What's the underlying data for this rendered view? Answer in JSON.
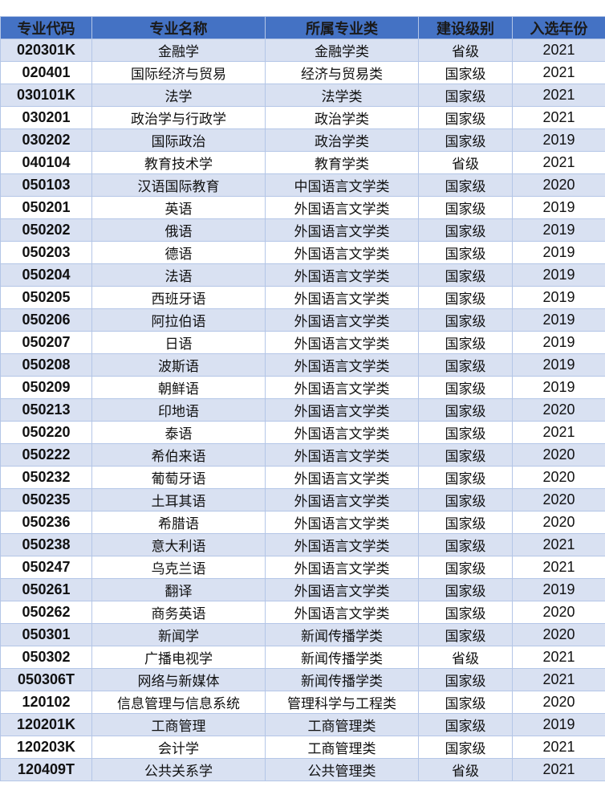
{
  "table": {
    "headers": [
      "专业代码",
      "专业名称",
      "所属专业类",
      "建设级别",
      "入选年份"
    ],
    "rows": [
      [
        "020301K",
        "金融学",
        "金融学类",
        "省级",
        "2021"
      ],
      [
        "020401",
        "国际经济与贸易",
        "经济与贸易类",
        "国家级",
        "2021"
      ],
      [
        "030101K",
        "法学",
        "法学类",
        "国家级",
        "2021"
      ],
      [
        "030201",
        "政治学与行政学",
        "政治学类",
        "国家级",
        "2021"
      ],
      [
        "030202",
        "国际政治",
        "政治学类",
        "国家级",
        "2019"
      ],
      [
        "040104",
        "教育技术学",
        "教育学类",
        "省级",
        "2021"
      ],
      [
        "050103",
        "汉语国际教育",
        "中国语言文学类",
        "国家级",
        "2020"
      ],
      [
        "050201",
        "英语",
        "外国语言文学类",
        "国家级",
        "2019"
      ],
      [
        "050202",
        "俄语",
        "外国语言文学类",
        "国家级",
        "2019"
      ],
      [
        "050203",
        "德语",
        "外国语言文学类",
        "国家级",
        "2019"
      ],
      [
        "050204",
        "法语",
        "外国语言文学类",
        "国家级",
        "2019"
      ],
      [
        "050205",
        "西班牙语",
        "外国语言文学类",
        "国家级",
        "2019"
      ],
      [
        "050206",
        "阿拉伯语",
        "外国语言文学类",
        "国家级",
        "2019"
      ],
      [
        "050207",
        "日语",
        "外国语言文学类",
        "国家级",
        "2019"
      ],
      [
        "050208",
        "波斯语",
        "外国语言文学类",
        "国家级",
        "2019"
      ],
      [
        "050209",
        "朝鲜语",
        "外国语言文学类",
        "国家级",
        "2019"
      ],
      [
        "050213",
        "印地语",
        "外国语言文学类",
        "国家级",
        "2020"
      ],
      [
        "050220",
        "泰语",
        "外国语言文学类",
        "国家级",
        "2021"
      ],
      [
        "050222",
        "希伯来语",
        "外国语言文学类",
        "国家级",
        "2020"
      ],
      [
        "050232",
        "葡萄牙语",
        "外国语言文学类",
        "国家级",
        "2020"
      ],
      [
        "050235",
        "土耳其语",
        "外国语言文学类",
        "国家级",
        "2020"
      ],
      [
        "050236",
        "希腊语",
        "外国语言文学类",
        "国家级",
        "2020"
      ],
      [
        "050238",
        "意大利语",
        "外国语言文学类",
        "国家级",
        "2021"
      ],
      [
        "050247",
        "乌克兰语",
        "外国语言文学类",
        "国家级",
        "2021"
      ],
      [
        "050261",
        "翻译",
        "外国语言文学类",
        "国家级",
        "2019"
      ],
      [
        "050262",
        "商务英语",
        "外国语言文学类",
        "国家级",
        "2020"
      ],
      [
        "050301",
        "新闻学",
        "新闻传播学类",
        "国家级",
        "2020"
      ],
      [
        "050302",
        "广播电视学",
        "新闻传播学类",
        "省级",
        "2021"
      ],
      [
        "050306T",
        "网络与新媒体",
        "新闻传播学类",
        "国家级",
        "2021"
      ],
      [
        "120102",
        "信息管理与信息系统",
        "管理科学与工程类",
        "国家级",
        "2020"
      ],
      [
        "120201K",
        "工商管理",
        "工商管理类",
        "国家级",
        "2019"
      ],
      [
        "120203K",
        "会计学",
        "工商管理类",
        "国家级",
        "2021"
      ],
      [
        "120409T",
        "公共关系学",
        "公共管理类",
        "省级",
        "2021"
      ]
    ]
  },
  "colors": {
    "header_bg": "#4472c4",
    "band": "#d9e1f2",
    "border": "#b4c6e7"
  }
}
